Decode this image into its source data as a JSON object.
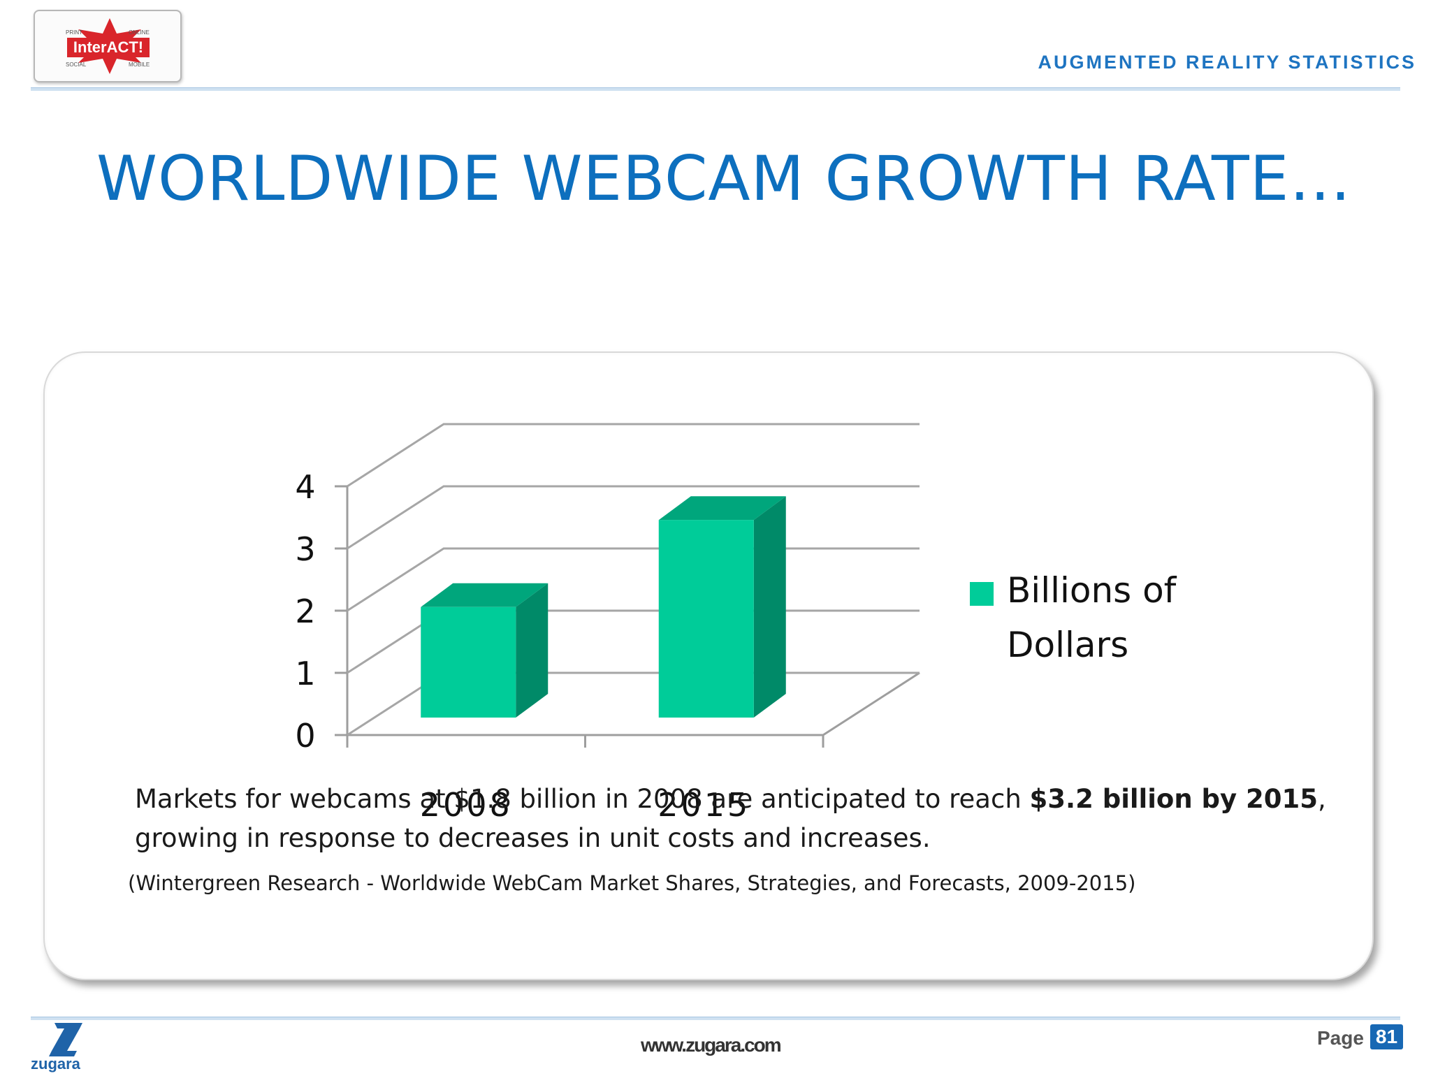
{
  "header": {
    "logo": {
      "main": "InterACT!",
      "top_left": "PRINT",
      "top_right": "ONLINE",
      "bottom_left": "SOCIAL",
      "bottom_right": "MOBILE"
    },
    "section_title": "AUGMENTED REALITY STATISTICS"
  },
  "slide": {
    "title": "WORLDWIDE WEBCAM GROWTH RATE…",
    "caption_prefix": "Markets for webcams at $1.8 billion in 2008 are anticipated to reach ",
    "caption_bold": "$3.2 billion by 2015",
    "caption_suffix": ", growing in response to decreases in unit costs and increases.",
    "source": "(Wintergreen Research - Worldwide WebCam Market Shares, Strategies, and Forecasts, 2009-2015)"
  },
  "chart_data": {
    "type": "bar",
    "style": "3d-column",
    "categories": [
      "2008",
      "2015"
    ],
    "series": [
      {
        "name": "Billions of Dollars",
        "values": [
          1.8,
          3.2
        ],
        "color": "#00cc99",
        "side_color": "#008a68",
        "top_color": "#00a67c"
      }
    ],
    "yticks": [
      0,
      1,
      2,
      3,
      4
    ],
    "ylim": [
      0,
      4
    ],
    "grid": true,
    "legend": "right"
  },
  "footer": {
    "brand": "zugara",
    "url": "www.zugara.com",
    "page_label": "Page",
    "page_number": "81"
  },
  "colors": {
    "title": "#0d6fbe",
    "accent": "#1e74c1",
    "logo_red": "#d9252b"
  }
}
